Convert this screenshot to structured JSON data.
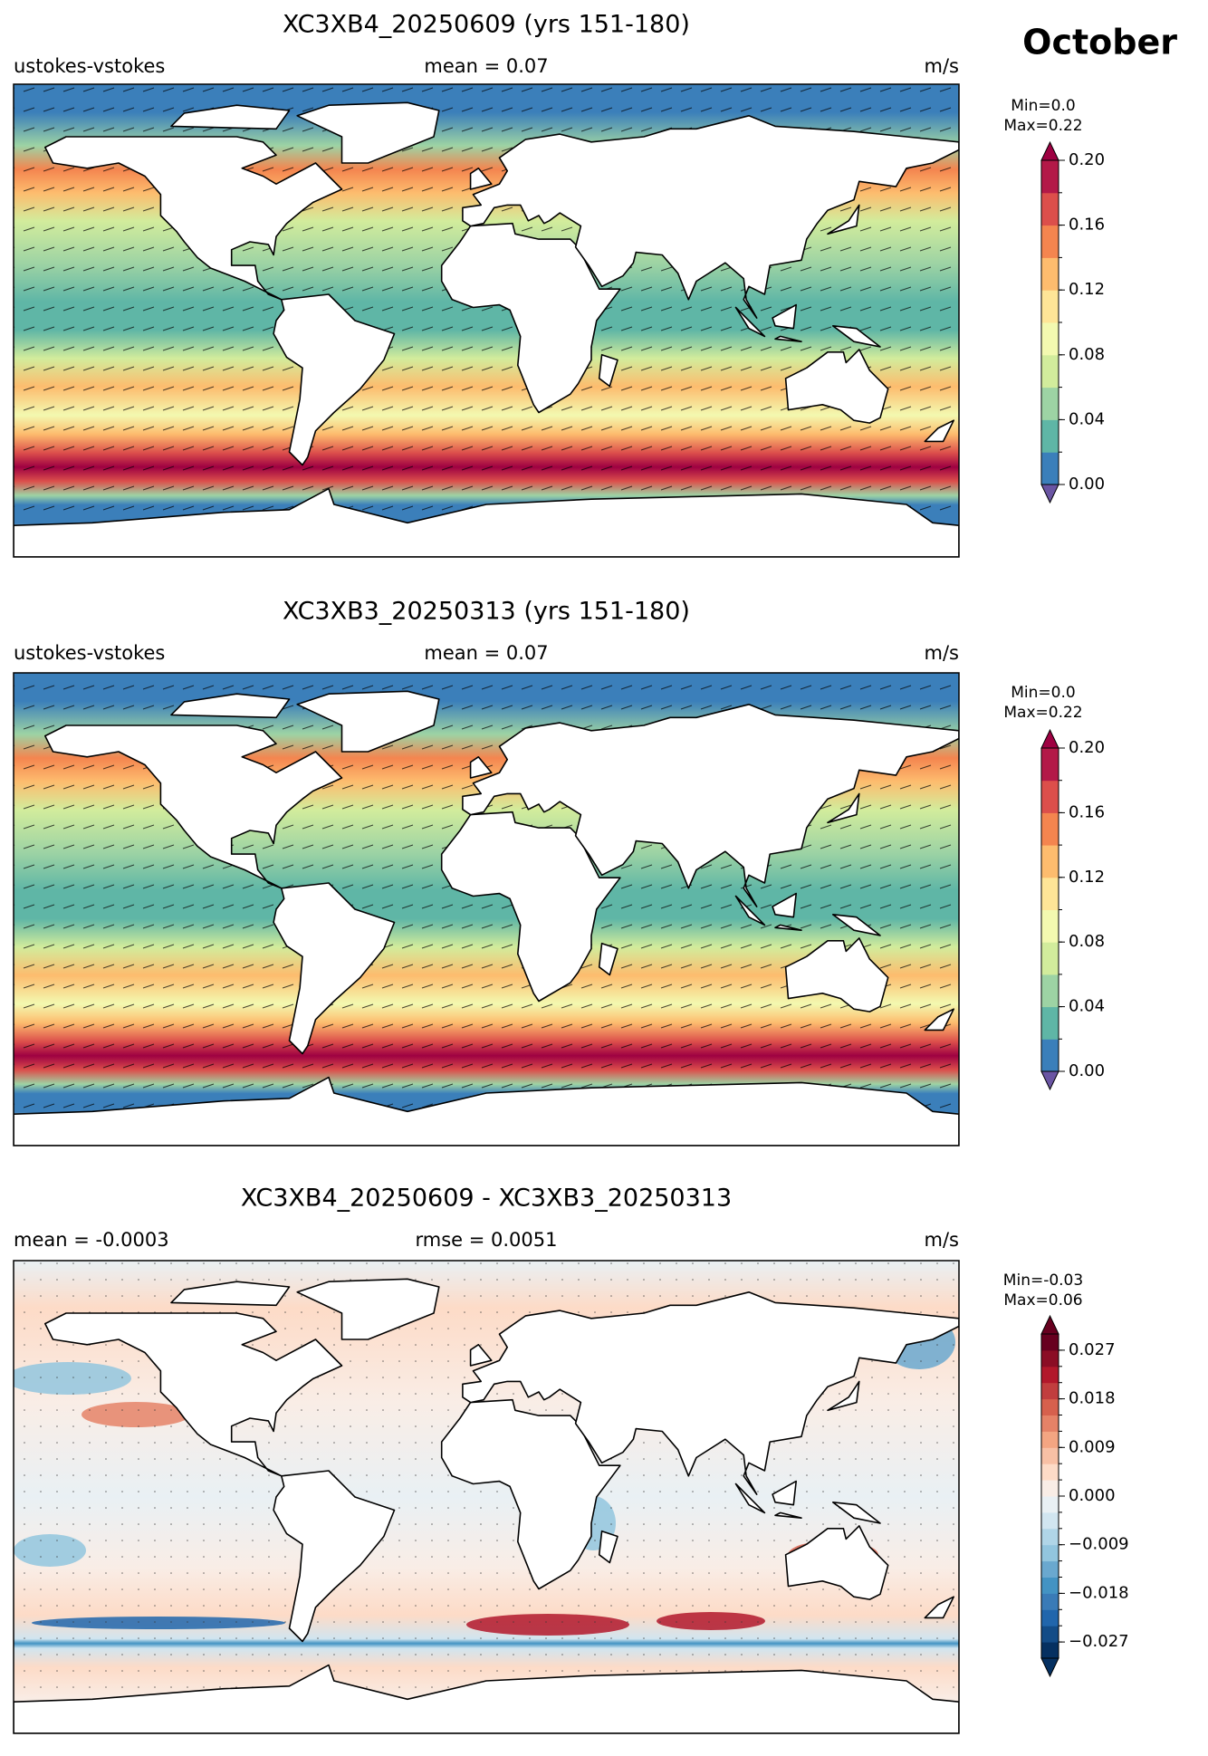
{
  "month": "October",
  "panels": [
    {
      "title": "XC3XB4_20250609 (yrs 151-180)",
      "left": "ustokes-vstokes",
      "center": "mean = 0.07",
      "right": "m/s",
      "range_text": [
        "Min=0.0",
        "Max=0.22"
      ],
      "colorbar": {
        "clim": [
          0,
          0.2
        ],
        "colors": [
          "#3b7fba",
          "#5fb6a6",
          "#9dd3a4",
          "#d2ec9c",
          "#f3f9b0",
          "#fee597",
          "#fdbc6e",
          "#f4854f",
          "#dc4f4b",
          "#b31948"
        ],
        "under_color": "#6a55a3",
        "over_color": "#9e0142",
        "ticks": [
          {
            "value": 0,
            "label": "0.00"
          },
          {
            "value": 0.04,
            "label": "0.04"
          },
          {
            "value": 0.08,
            "label": "0.08"
          },
          {
            "value": 0.12,
            "label": "0.12"
          },
          {
            "value": 0.16,
            "label": "0.16"
          },
          {
            "value": 0.2,
            "label": "0.20"
          }
        ]
      }
    },
    {
      "title": "XC3XB3_20250313 (yrs 151-180)",
      "left": "ustokes-vstokes",
      "center": "mean = 0.07",
      "right": "m/s",
      "range_text": [
        "Min=0.0",
        "Max=0.22"
      ],
      "colorbar": {
        "clim": [
          0,
          0.2
        ],
        "colors": [
          "#3b7fba",
          "#5fb6a6",
          "#9dd3a4",
          "#d2ec9c",
          "#f3f9b0",
          "#fee597",
          "#fdbc6e",
          "#f4854f",
          "#dc4f4b",
          "#b31948"
        ],
        "under_color": "#6a55a3",
        "over_color": "#9e0142",
        "ticks": [
          {
            "value": 0,
            "label": "0.00"
          },
          {
            "value": 0.04,
            "label": "0.04"
          },
          {
            "value": 0.08,
            "label": "0.08"
          },
          {
            "value": 0.12,
            "label": "0.12"
          },
          {
            "value": 0.16,
            "label": "0.16"
          },
          {
            "value": 0.2,
            "label": "0.20"
          }
        ]
      }
    },
    {
      "title": "XC3XB4_20250609 - XC3XB3_20250313",
      "left": "mean = -0.0003",
      "center": "rmse = 0.0051",
      "right": "m/s",
      "range_text": [
        "Min=-0.03",
        "Max=0.06"
      ],
      "colorbar": {
        "clim": [
          -0.03,
          0.03
        ],
        "colors": [
          "#053061",
          "#134c87",
          "#2166ac",
          "#3a7bb7",
          "#4393c3",
          "#6aa8cf",
          "#92c5de",
          "#b0d5e7",
          "#d1e5f0",
          "#e9f0f4",
          "#f9ede6",
          "#fddbc7",
          "#f8c0a5",
          "#f4a582",
          "#e58267",
          "#d6604d",
          "#c13e3e",
          "#b2182b",
          "#8b0d25",
          "#67001f"
        ],
        "under_color": "#053061",
        "over_color": "#67001f",
        "ticks": [
          {
            "value": -0.027,
            "label": "−0.027"
          },
          {
            "value": -0.018,
            "label": "−0.018"
          },
          {
            "value": -0.009,
            "label": "−0.009"
          },
          {
            "value": 0,
            "label": "0.000"
          },
          {
            "value": 0.009,
            "label": "0.009"
          },
          {
            "value": 0.018,
            "label": "0.018"
          },
          {
            "value": 0.027,
            "label": "0.027"
          }
        ]
      }
    }
  ]
}
